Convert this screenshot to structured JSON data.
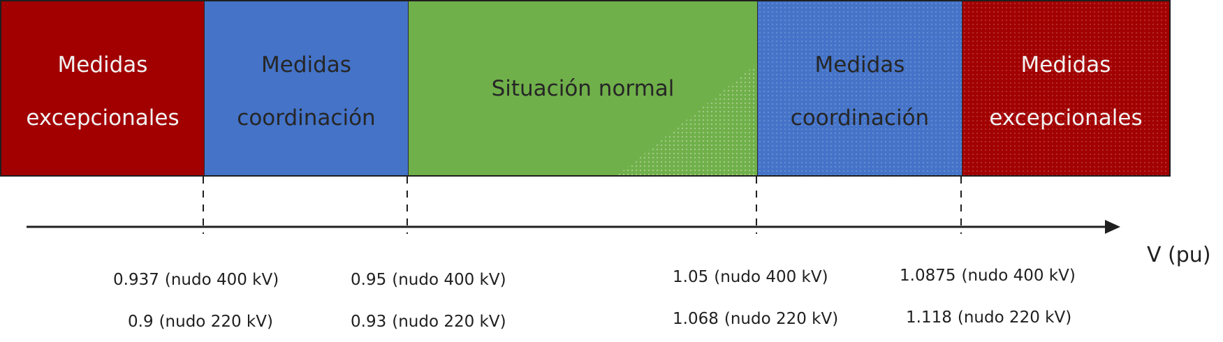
{
  "bands": [
    {
      "label": "Medidas\nexcepcionales",
      "color": "#a20000"
    },
    {
      "label": "Medidas\ncoordinación",
      "color": "#4473c8"
    },
    {
      "label": "Situación normal",
      "color": "#70b04a"
    },
    {
      "label": "Medidas\ncoordinación",
      "color": "#4473c8"
    },
    {
      "label": "Medidas\nexcepcionales",
      "color": "#a20000"
    }
  ],
  "axis": {
    "label": "V (pu)"
  },
  "thresholds": [
    {
      "row1": {
        "value": "0.937",
        "node": "(nudo 400 kV)"
      },
      "row2": {
        "value": "0.9",
        "node": "(nudo 220 kV)"
      }
    },
    {
      "row1": {
        "value": "0.95",
        "node": "(nudo 400 kV)"
      },
      "row2": {
        "value": "0.93",
        "node": "(nudo 220 kV)"
      }
    },
    {
      "row1": {
        "value": "1.05",
        "node": "(nudo 400 kV)"
      },
      "row2": {
        "value": "1.068",
        "node": "(nudo 220 kV)"
      }
    },
    {
      "row1": {
        "value": "1.0875",
        "node": "(nudo 400 kV)"
      },
      "row2": {
        "value": "1.118",
        "node": "(nudo 220 kV)"
      }
    }
  ]
}
